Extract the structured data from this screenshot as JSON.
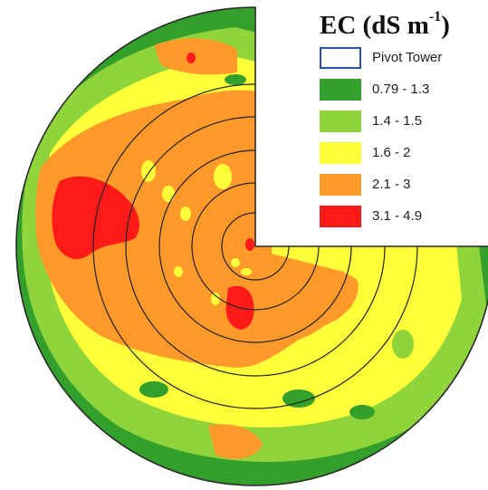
{
  "legend": {
    "title_main": "EC (dS m",
    "title_sup": "-1",
    "title_close": ")",
    "items": [
      {
        "label": "Pivot Tower",
        "color": "#ffffff",
        "outline": "#2c4fa8",
        "icon": "pivot-tower-outline"
      },
      {
        "label": "0.79 - 1.3",
        "color": "#33a02c"
      },
      {
        "label": "1.4 - 1.5",
        "color": "#8fd43a"
      },
      {
        "label": "1.6 - 2",
        "color": "#ffff3a"
      },
      {
        "label": "2.1 - 3",
        "color": "#ff9a2a"
      },
      {
        "label": "3.1 - 4.9",
        "color": "#ff1a1a"
      }
    ]
  },
  "colors": {
    "class_1": "#33a02c",
    "class_2": "#8fd43a",
    "class_3": "#ffff3a",
    "class_4": "#ff9a2a",
    "class_5": "#ff1a1a",
    "ring_line": "#222222",
    "outline": "#2a2a2a"
  }
}
